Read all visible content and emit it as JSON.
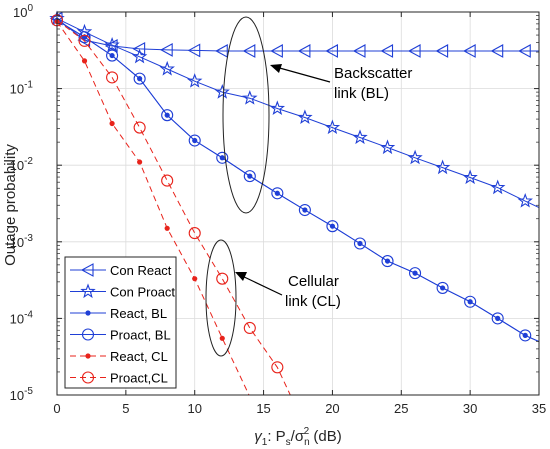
{
  "chart_data": {
    "type": "line",
    "title": "",
    "xlabel": {
      "prefix": "γ",
      "prefix_sub": "1",
      "body": ": P",
      "body_sub": "s",
      "slash": "/σ",
      "sigma_sub": "n",
      "sigma_sup": "2",
      "unit": " (dB)"
    },
    "ylabel": "Outage probability",
    "xlim": [
      0,
      35
    ],
    "ylim": [
      1e-05,
      1
    ],
    "yscale": "log",
    "xticks": [
      "0",
      "5",
      "10",
      "15",
      "20",
      "25",
      "30",
      "35"
    ],
    "yticks": [
      {
        "base": "10",
        "exp": "-5",
        "value": 1e-05
      },
      {
        "base": "10",
        "exp": "-4",
        "value": 0.0001
      },
      {
        "base": "10",
        "exp": "-3",
        "value": 0.001
      },
      {
        "base": "10",
        "exp": "-2",
        "value": 0.01
      },
      {
        "base": "10",
        "exp": "-1",
        "value": 0.1
      },
      {
        "base": "10",
        "exp": "0",
        "value": 1
      }
    ],
    "grid": true,
    "legend_position": "bottom-left",
    "series": [
      {
        "name": "Con React",
        "color": "#1f3fd6",
        "dash": "solid",
        "marker": "triangle-left",
        "x": [
          0,
          2,
          4,
          6,
          8,
          10,
          12,
          14,
          16,
          18,
          20,
          22,
          24,
          26,
          28,
          30,
          32,
          34,
          35
        ],
        "y": [
          0.82,
          0.43,
          0.36,
          0.33,
          0.32,
          0.315,
          0.31,
          0.31,
          0.31,
          0.31,
          0.31,
          0.31,
          0.31,
          0.31,
          0.31,
          0.31,
          0.31,
          0.31,
          0.31
        ]
      },
      {
        "name": "Con Proact",
        "color": "#1f3fd6",
        "dash": "solid",
        "marker": "star",
        "x": [
          0,
          2,
          4,
          6,
          8,
          10,
          12,
          14,
          16,
          18,
          20,
          22,
          24,
          26,
          28,
          30,
          32,
          34,
          35
        ],
        "y": [
          0.82,
          0.55,
          0.37,
          0.26,
          0.18,
          0.125,
          0.09,
          0.075,
          0.055,
          0.042,
          0.031,
          0.023,
          0.017,
          0.0125,
          0.0093,
          0.0069,
          0.0051,
          0.0034,
          0.0028
        ]
      },
      {
        "name": "React, BL",
        "color": "#1f3fd6",
        "dash": "solid",
        "marker": "dot",
        "x": [
          0,
          2,
          4,
          6,
          8,
          10,
          12,
          14,
          16,
          18,
          20,
          22,
          24,
          26,
          28,
          30,
          32,
          34,
          35
        ],
        "y": [
          0.78,
          0.47,
          0.27,
          0.135,
          0.045,
          0.021,
          0.0125,
          0.0072,
          0.0043,
          0.0026,
          0.0016,
          0.00095,
          0.00056,
          0.00039,
          0.00025,
          0.000165,
          0.0001,
          6e-05,
          5e-05
        ]
      },
      {
        "name": "Proact, BL",
        "color": "#1f3fd6",
        "dash": "solid",
        "marker": "circle",
        "x": [
          0,
          2,
          4,
          6,
          8,
          10,
          12,
          14,
          16,
          18,
          20,
          22,
          24,
          26,
          28,
          30,
          32,
          34,
          35
        ],
        "y": [
          0.78,
          0.47,
          0.27,
          0.135,
          0.045,
          0.021,
          0.0125,
          0.0072,
          0.0043,
          0.0026,
          0.0016,
          0.00095,
          0.00056,
          0.00039,
          0.00025,
          0.000165,
          0.0001,
          6e-05,
          5e-05
        ]
      },
      {
        "name": "React, CL",
        "color": "#e8231b",
        "dash": "dashed",
        "marker": "dot",
        "x": [
          0,
          2,
          4,
          6,
          8,
          10,
          12,
          14
        ],
        "y": [
          0.75,
          0.23,
          0.035,
          0.011,
          0.0015,
          0.00033,
          5.5e-05,
          9.5e-06
        ]
      },
      {
        "name": "Proact,CL",
        "color": "#e8231b",
        "dash": "dashed",
        "marker": "circle",
        "x": [
          0,
          2,
          4,
          6,
          8,
          10,
          12,
          14,
          16,
          17
        ],
        "y": [
          0.78,
          0.42,
          0.14,
          0.031,
          0.0063,
          0.0013,
          0.00033,
          7.5e-05,
          2.3e-05,
          9.5e-06
        ]
      }
    ],
    "annotations": [
      {
        "lines": [
          "Backscatter",
          "link (BL)"
        ]
      },
      {
        "lines": [
          "Cellular",
          "link (CL)"
        ]
      }
    ]
  }
}
